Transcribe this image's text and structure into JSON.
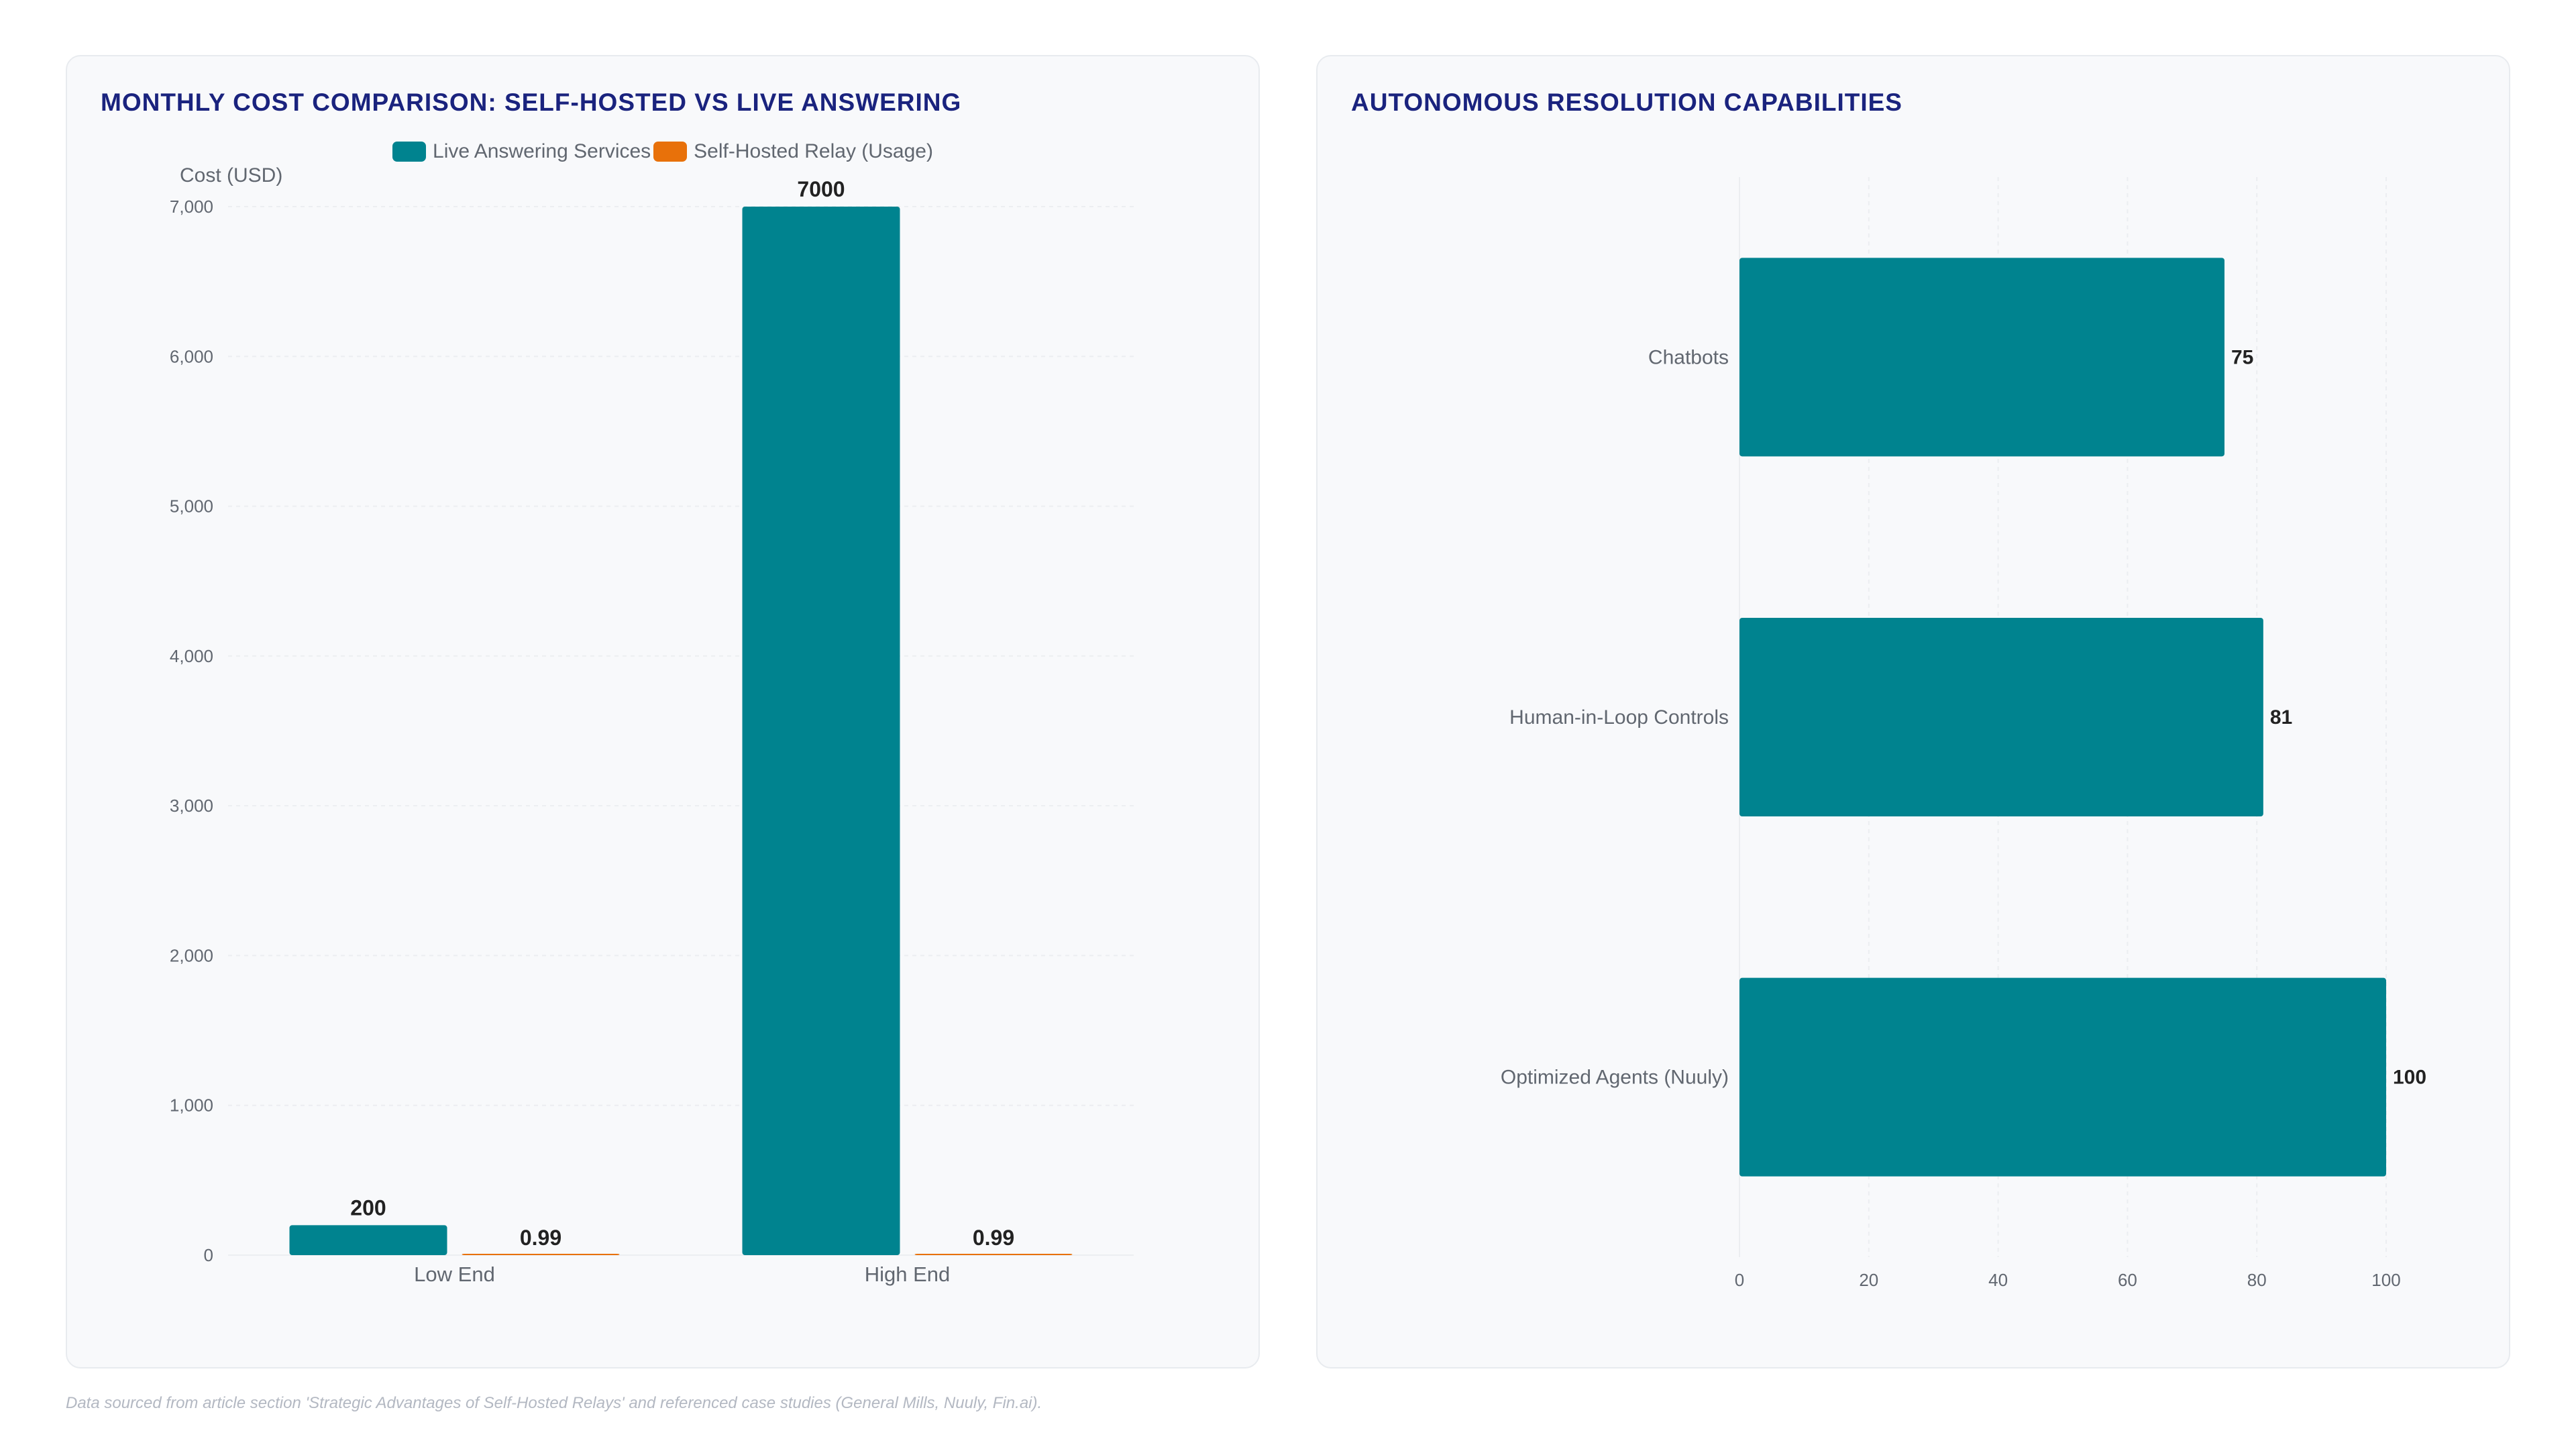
{
  "colors": {
    "teal": "#00838f",
    "orange": "#e8710a",
    "title": "#1a237e",
    "grid": "#eceef1",
    "text": "#616770",
    "label": "#222222"
  },
  "footnote": "Data sourced from article section 'Strategic Advantages of Self-Hosted Relays' and referenced case studies (General Mills, Nuuly, Fin.ai).",
  "chart_data": [
    {
      "type": "bar",
      "title": "MONTHLY COST COMPARISON: SELF-HOSTED VS LIVE ANSWERING",
      "ylabel": "Cost (USD)",
      "xlabel": "",
      "categories": [
        "Low End",
        "High End"
      ],
      "series": [
        {
          "name": "Live Answering Services",
          "values": [
            200,
            7000
          ],
          "color": "#00838f"
        },
        {
          "name": "Self-Hosted Relay (Usage)",
          "values": [
            0.99,
            0.99
          ],
          "color": "#e8710a"
        }
      ],
      "ylim": [
        0,
        7000
      ],
      "yticks": [
        0,
        1000,
        2000,
        3000,
        4000,
        5000,
        6000,
        7000
      ],
      "ytick_labels": [
        "0",
        "1,000",
        "2,000",
        "3,000",
        "4,000",
        "5,000",
        "6,000",
        "7,000"
      ],
      "data_labels": [
        [
          "200",
          "7000"
        ],
        [
          "0.99",
          "0.99"
        ]
      ],
      "legend": "top-center",
      "grid": true
    },
    {
      "type": "bar",
      "orientation": "horizontal",
      "title": "AUTONOMOUS RESOLUTION CAPABILITIES",
      "categories": [
        "Chatbots",
        "Human-in-Loop Controls",
        "Optimized Agents (Nuuly)"
      ],
      "values": [
        75,
        81,
        100
      ],
      "data_labels": [
        "75",
        "81",
        "100"
      ],
      "xlim": [
        0,
        100
      ],
      "xticks": [
        0,
        20,
        40,
        60,
        80,
        100
      ],
      "color": "#00838f",
      "grid": true
    }
  ]
}
